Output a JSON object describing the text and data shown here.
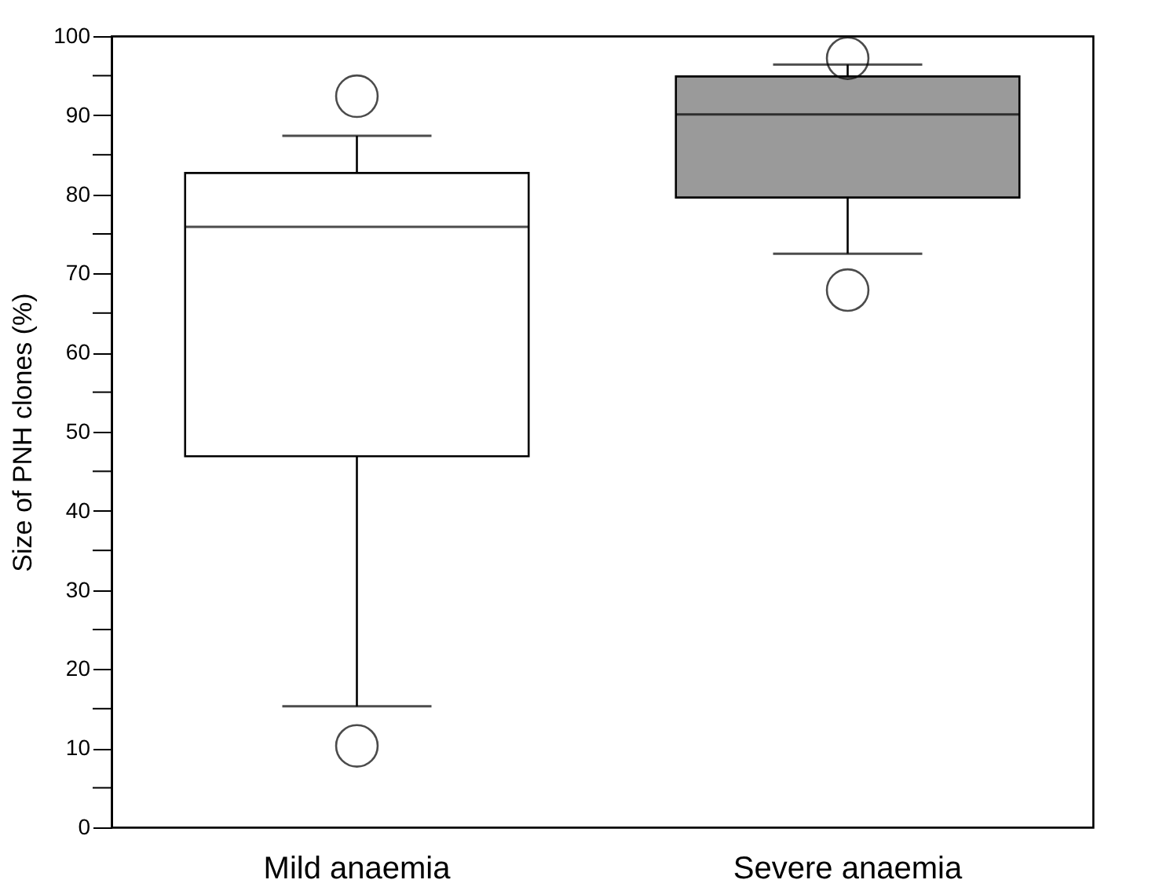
{
  "chart_data": {
    "type": "box",
    "ylabel": "Size of PNH clones (%)",
    "categories": [
      "Mild anaemia",
      "Severe anaemia"
    ],
    "colors": [
      "#ffffff",
      "#9a9a9a"
    ],
    "boxes": [
      {
        "low": 15.3,
        "q1": 46.9,
        "median": 75.9,
        "q3": 82.7,
        "high": 87.4,
        "outliers": [
          92.4,
          10.3
        ]
      },
      {
        "low": 72.5,
        "q1": 79.6,
        "median": 90.1,
        "q3": 94.9,
        "high": 96.4,
        "outliers": [
          97.2,
          67.9
        ]
      }
    ],
    "ylim": [
      0,
      100
    ],
    "yticks": [
      0,
      {
        "value": 5,
        "label": null
      },
      10,
      {
        "value": 15,
        "label": null
      },
      20,
      {
        "value": 25,
        "label": null
      },
      30,
      {
        "value": 35,
        "label": null
      },
      40,
      {
        "value": 45,
        "label": null
      },
      50,
      {
        "value": 55,
        "label": null
      },
      60,
      {
        "value": 65,
        "label": null
      },
      70,
      {
        "value": 75,
        "label": null
      },
      80,
      {
        "value": 85,
        "label": null
      },
      90,
      {
        "value": 95,
        "label": null
      },
      100
    ],
    "grid": false
  }
}
